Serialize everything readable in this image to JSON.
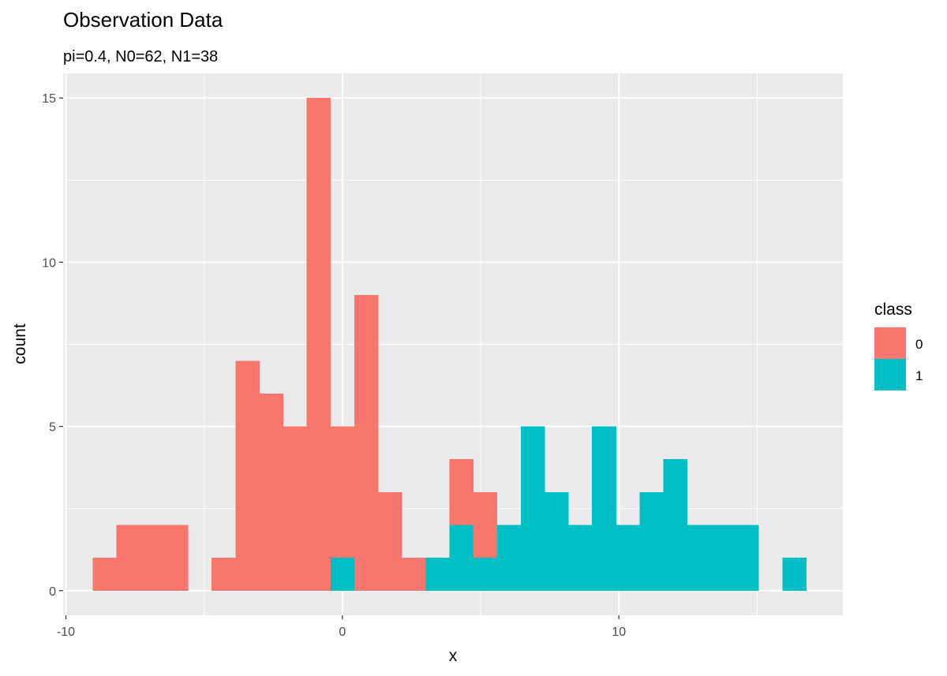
{
  "chart_data": {
    "type": "bar",
    "title": "Observation Data",
    "subtitle": "pi=0.4, N0=62, N1=38",
    "xlabel": "x",
    "ylabel": "count",
    "xlim": [
      -10.1,
      18.1
    ],
    "ylim": [
      -0.75,
      15.75
    ],
    "x_ticks": [
      -10,
      0,
      10
    ],
    "y_ticks": [
      0,
      5,
      10,
      15
    ],
    "grid": true,
    "stacked": true,
    "bin_width": 0.86,
    "legend": {
      "title": "class",
      "position": "right"
    },
    "series": [
      {
        "name": "0",
        "color": "#F8766D",
        "bins": [
          {
            "x": -8.6,
            "count": 1
          },
          {
            "x": -7.74,
            "count": 2
          },
          {
            "x": -6.88,
            "count": 2
          },
          {
            "x": -6.02,
            "count": 2
          },
          {
            "x": -4.3,
            "count": 1
          },
          {
            "x": -3.44,
            "count": 7
          },
          {
            "x": -2.58,
            "count": 6
          },
          {
            "x": -1.72,
            "count": 5
          },
          {
            "x": -0.86,
            "count": 15
          },
          {
            "x": 0.0,
            "count": 4
          },
          {
            "x": 0.86,
            "count": 9
          },
          {
            "x": 1.72,
            "count": 3
          },
          {
            "x": 2.58,
            "count": 1
          },
          {
            "x": 4.3,
            "count": 2
          },
          {
            "x": 5.16,
            "count": 2
          }
        ]
      },
      {
        "name": "1",
        "color": "#00BFC4",
        "bins": [
          {
            "x": 0.0,
            "count": 1
          },
          {
            "x": 3.44,
            "count": 1
          },
          {
            "x": 4.3,
            "count": 2
          },
          {
            "x": 5.16,
            "count": 1
          },
          {
            "x": 6.02,
            "count": 2
          },
          {
            "x": 6.88,
            "count": 5
          },
          {
            "x": 7.74,
            "count": 3
          },
          {
            "x": 8.6,
            "count": 2
          },
          {
            "x": 9.46,
            "count": 5
          },
          {
            "x": 10.32,
            "count": 2
          },
          {
            "x": 11.18,
            "count": 3
          },
          {
            "x": 12.04,
            "count": 4
          },
          {
            "x": 12.9,
            "count": 2
          },
          {
            "x": 13.76,
            "count": 2
          },
          {
            "x": 14.62,
            "count": 2
          },
          {
            "x": 16.34,
            "count": 1
          }
        ]
      }
    ],
    "colors": {
      "panel": "#EBEBEB",
      "grid": "#FFFFFF"
    }
  }
}
